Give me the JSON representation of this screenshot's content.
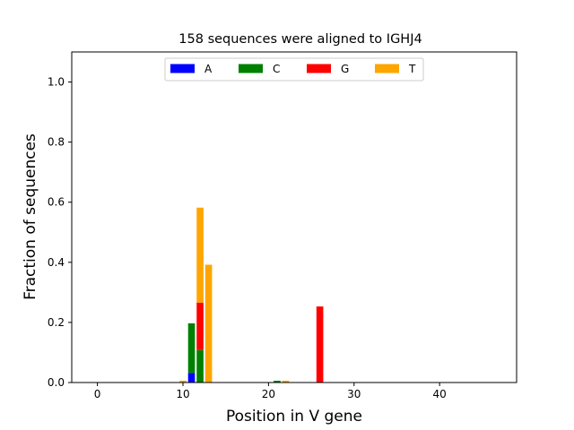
{
  "chart_data": {
    "type": "bar",
    "stacked": true,
    "title": "158 sequences were aligned to IGHJ4",
    "xlabel": "Position in V gene",
    "ylabel": "Fraction of sequences",
    "xlim": [
      -3,
      49
    ],
    "ylim": [
      0,
      1.1
    ],
    "xticks": [
      0,
      10,
      20,
      30,
      40
    ],
    "yticks": [
      0.0,
      0.2,
      0.4,
      0.6,
      0.8,
      1.0
    ],
    "ytick_labels": [
      "0.0",
      "0.2",
      "0.4",
      "0.6",
      "0.8",
      "1.0"
    ],
    "legend": {
      "placement": "upper center",
      "columns": 4
    },
    "series": [
      {
        "name": "A",
        "color": "#0000ff",
        "points": [
          {
            "x": 11,
            "y": 0.032
          }
        ]
      },
      {
        "name": "C",
        "color": "#008000",
        "points": [
          {
            "x": 11,
            "y": 0.165
          },
          {
            "x": 12,
            "y": 0.108
          },
          {
            "x": 21,
            "y": 0.006
          }
        ]
      },
      {
        "name": "G",
        "color": "#ff0000",
        "points": [
          {
            "x": 12,
            "y": 0.158
          },
          {
            "x": 26,
            "y": 0.253
          }
        ]
      },
      {
        "name": "T",
        "color": "#ffa500",
        "points": [
          {
            "x": 10,
            "y": 0.006
          },
          {
            "x": 12,
            "y": 0.316
          },
          {
            "x": 13,
            "y": 0.392
          },
          {
            "x": 22,
            "y": 0.006
          }
        ]
      }
    ]
  }
}
